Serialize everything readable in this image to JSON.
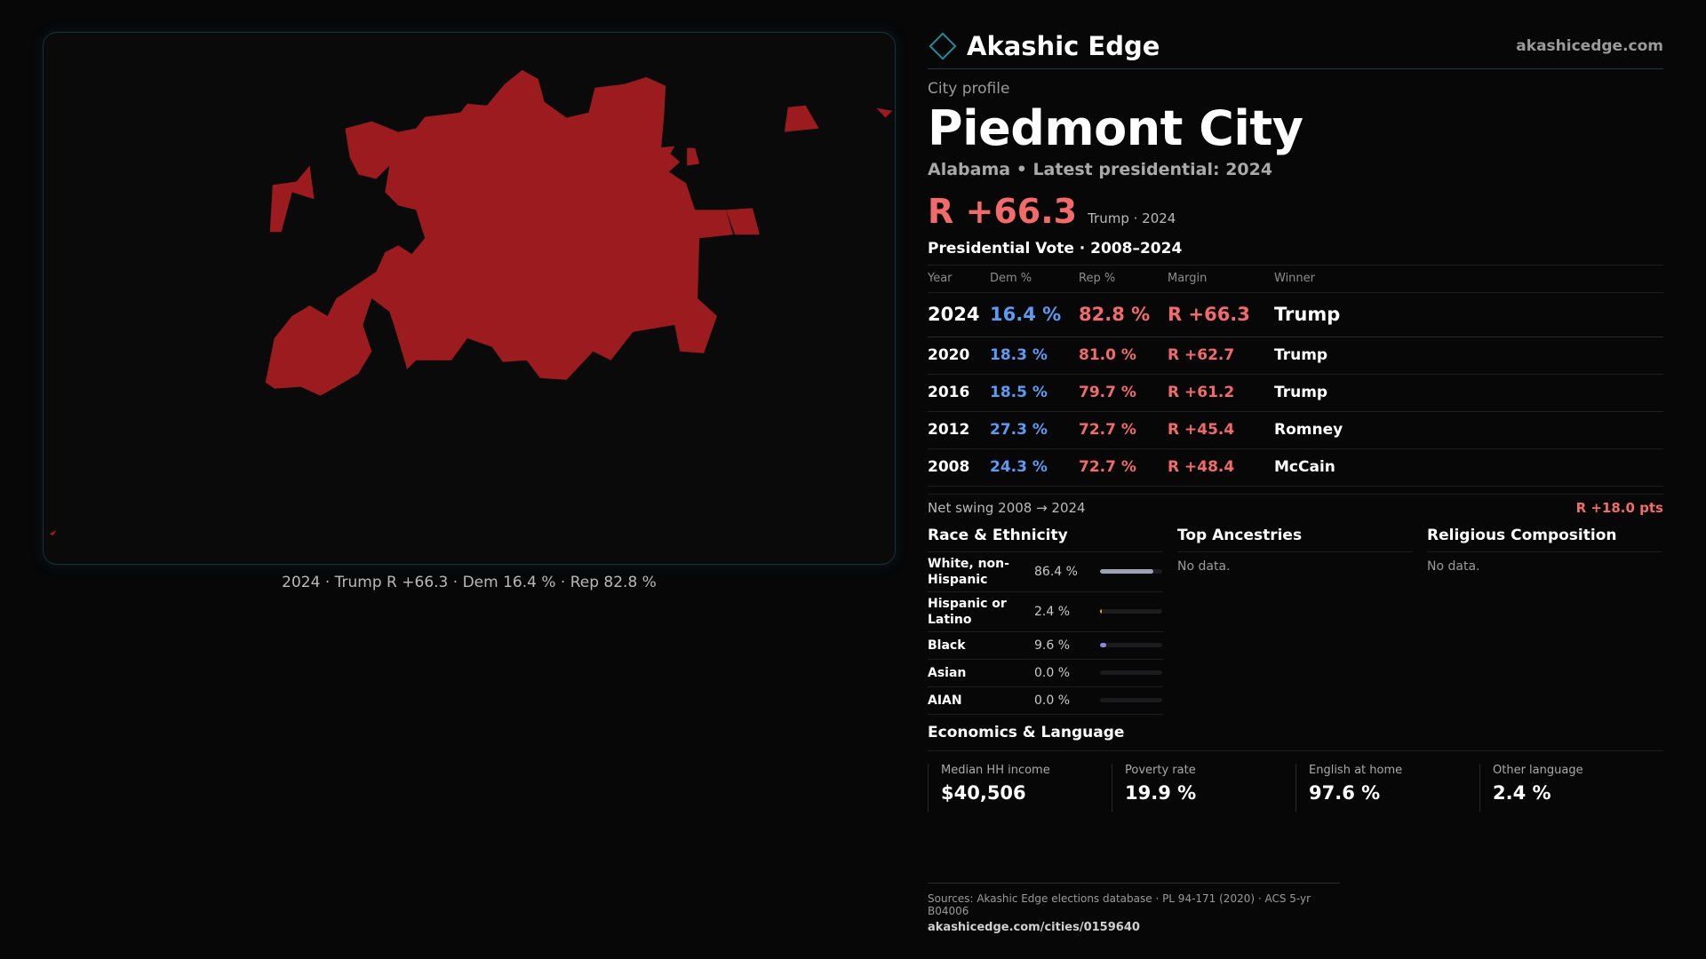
{
  "brand": {
    "name": "Akashic Edge",
    "url": "akashicedge.com",
    "accent": "#1f8a9e"
  },
  "map": {
    "caption": "2024 · Trump R +66.3 · Dem 16.4 % · Rep 82.8 %",
    "fill_color": "#9b1b1e"
  },
  "profile": {
    "eyebrow": "City profile",
    "city": "Piedmont City",
    "subtitle": "Alabama • Latest presidential: 2024",
    "headline_margin": "R +66.3",
    "headline_note": "Trump · 2024"
  },
  "votes": {
    "title": "Presidential Vote · 2008–2024",
    "headers": {
      "year": "Year",
      "dem": "Dem %",
      "rep": "Rep %",
      "margin": "Margin",
      "winner": "Winner"
    },
    "rows": [
      {
        "year": "2024",
        "dem": "16.4 %",
        "rep": "82.8 %",
        "margin": "R +66.3",
        "winner": "Trump"
      },
      {
        "year": "2020",
        "dem": "18.3 %",
        "rep": "81.0 %",
        "margin": "R +62.7",
        "winner": "Trump"
      },
      {
        "year": "2016",
        "dem": "18.5 %",
        "rep": "79.7 %",
        "margin": "R +61.2",
        "winner": "Trump"
      },
      {
        "year": "2012",
        "dem": "27.3 %",
        "rep": "72.7 %",
        "margin": "R +45.4",
        "winner": "Romney"
      },
      {
        "year": "2008",
        "dem": "24.3 %",
        "rep": "72.7 %",
        "margin": "R +48.4",
        "winner": "McCain"
      }
    ],
    "swing_label": "Net swing 2008 → 2024",
    "swing_value": "R +18.0 pts"
  },
  "race": {
    "title": "Race & Ethnicity",
    "rows": [
      {
        "label": "White, non-Hispanic",
        "value": "86.4 %",
        "pct": 86.4,
        "color": "#9ba3b5"
      },
      {
        "label": "Hispanic or Latino",
        "value": "2.4 %",
        "pct": 2.4,
        "color": "#e0a23a"
      },
      {
        "label": "Black",
        "value": "9.6 %",
        "pct": 9.6,
        "color": "#8f86e8"
      },
      {
        "label": "Asian",
        "value": "0.0 %",
        "pct": 0.0,
        "color": "#4fb8a8"
      },
      {
        "label": "AIAN",
        "value": "0.0 %",
        "pct": 0.0,
        "color": "#c97a5a"
      }
    ]
  },
  "ancestries": {
    "title": "Top Ancestries",
    "empty": "No data."
  },
  "religion": {
    "title": "Religious Composition",
    "empty": "No data."
  },
  "economics": {
    "title": "Economics & Language",
    "cells": [
      {
        "label": "Median HH income",
        "value": "$40,506"
      },
      {
        "label": "Poverty rate",
        "value": "19.9 %"
      },
      {
        "label": "English at home",
        "value": "97.6 %"
      },
      {
        "label": "Other language",
        "value": "2.4 %"
      }
    ]
  },
  "sources": {
    "text": "Sources: Akashic Edge elections database · PL 94-171 (2020) · ACS 5-yr B04006",
    "url": "akashicedge.com/cities/0159640"
  }
}
